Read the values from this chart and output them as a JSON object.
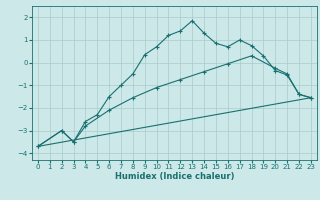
{
  "title": "",
  "xlabel": "Humidex (Indice chaleur)",
  "background_color": "#cce8e8",
  "grid_color": "#aacccc",
  "line_color": "#1a7070",
  "xlim": [
    -0.5,
    23.5
  ],
  "ylim": [
    -4.3,
    2.5
  ],
  "xticks": [
    0,
    1,
    2,
    3,
    4,
    5,
    6,
    7,
    8,
    9,
    10,
    11,
    12,
    13,
    14,
    15,
    16,
    17,
    18,
    19,
    20,
    21,
    22,
    23
  ],
  "yticks": [
    -4,
    -3,
    -2,
    -1,
    0,
    1,
    2
  ],
  "lines": [
    {
      "x": [
        0,
        2,
        3,
        4,
        5,
        6,
        7,
        8,
        9,
        10,
        11,
        12,
        13,
        14,
        15,
        16,
        17,
        18,
        19,
        20,
        21,
        22,
        23
      ],
      "y": [
        -3.7,
        -3.0,
        -3.5,
        -2.6,
        -2.3,
        -1.5,
        -1.0,
        -0.5,
        0.35,
        0.7,
        1.2,
        1.4,
        1.85,
        1.3,
        0.85,
        0.7,
        1.0,
        0.75,
        0.3,
        -0.35,
        -0.55,
        -1.4,
        -1.55
      ]
    },
    {
      "x": [
        0,
        2,
        3,
        4,
        6,
        8,
        10,
        12,
        14,
        16,
        18,
        20,
        21,
        22,
        23
      ],
      "y": [
        -3.7,
        -3.0,
        -3.5,
        -2.8,
        -2.1,
        -1.55,
        -1.1,
        -0.75,
        -0.4,
        -0.05,
        0.3,
        -0.25,
        -0.5,
        -1.4,
        -1.55
      ]
    },
    {
      "x": [
        0,
        23
      ],
      "y": [
        -3.7,
        -1.55
      ]
    }
  ]
}
